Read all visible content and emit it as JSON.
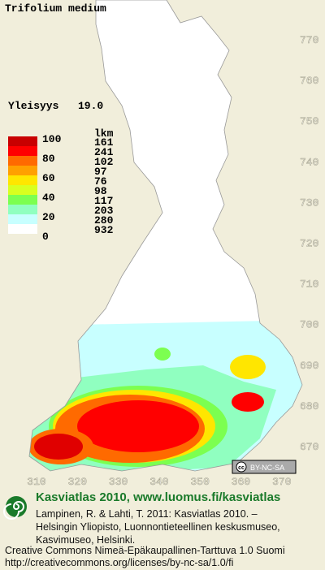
{
  "map": {
    "title": "Trifolium medium",
    "frequency_label": "Yleisyys",
    "frequency_value": "19.0",
    "legend": {
      "scale_labels": [
        100,
        80,
        60,
        40,
        20,
        0
      ],
      "count_header": "lkm",
      "classes": [
        {
          "color": "#c80000",
          "count": 161
        },
        {
          "color": "#ff0000",
          "count": 241
        },
        {
          "color": "#ff6a00",
          "count": 102
        },
        {
          "color": "#ffa000",
          "count": 97
        },
        {
          "color": "#ffe600",
          "count": 76
        },
        {
          "color": "#d8ff20",
          "count": 98
        },
        {
          "color": "#7cff50",
          "count": 117
        },
        {
          "color": "#90ffc0",
          "count": 203
        },
        {
          "color": "#c8ffff",
          "count": 280
        },
        {
          "color": "#ffffff",
          "count": 932
        }
      ]
    },
    "northing_ticks": [
      770,
      760,
      750,
      740,
      730,
      720,
      710,
      700,
      690,
      680,
      670
    ],
    "easting_ticks": [
      310,
      320,
      330,
      340,
      350,
      360,
      370
    ],
    "badge": "BY-NC-SA"
  },
  "footer": {
    "site": "Kasviatlas 2010, www.luomus.fi/kasviatlas",
    "citation": [
      "Lampinen, R. & Lahti, T. 2011: Kasviatlas 2010. –",
      "Helsingin Yliopisto, Luonnontieteellinen keskusmuseo,",
      "Kasvimuseo, Helsinki."
    ],
    "license": [
      "Creative Commons Nimeä-Epäkaupallinen-Tarttuva 1.0 Suomi",
      "http://creativecommons.org/licenses/by-nc-sa/1.0/fi"
    ]
  }
}
